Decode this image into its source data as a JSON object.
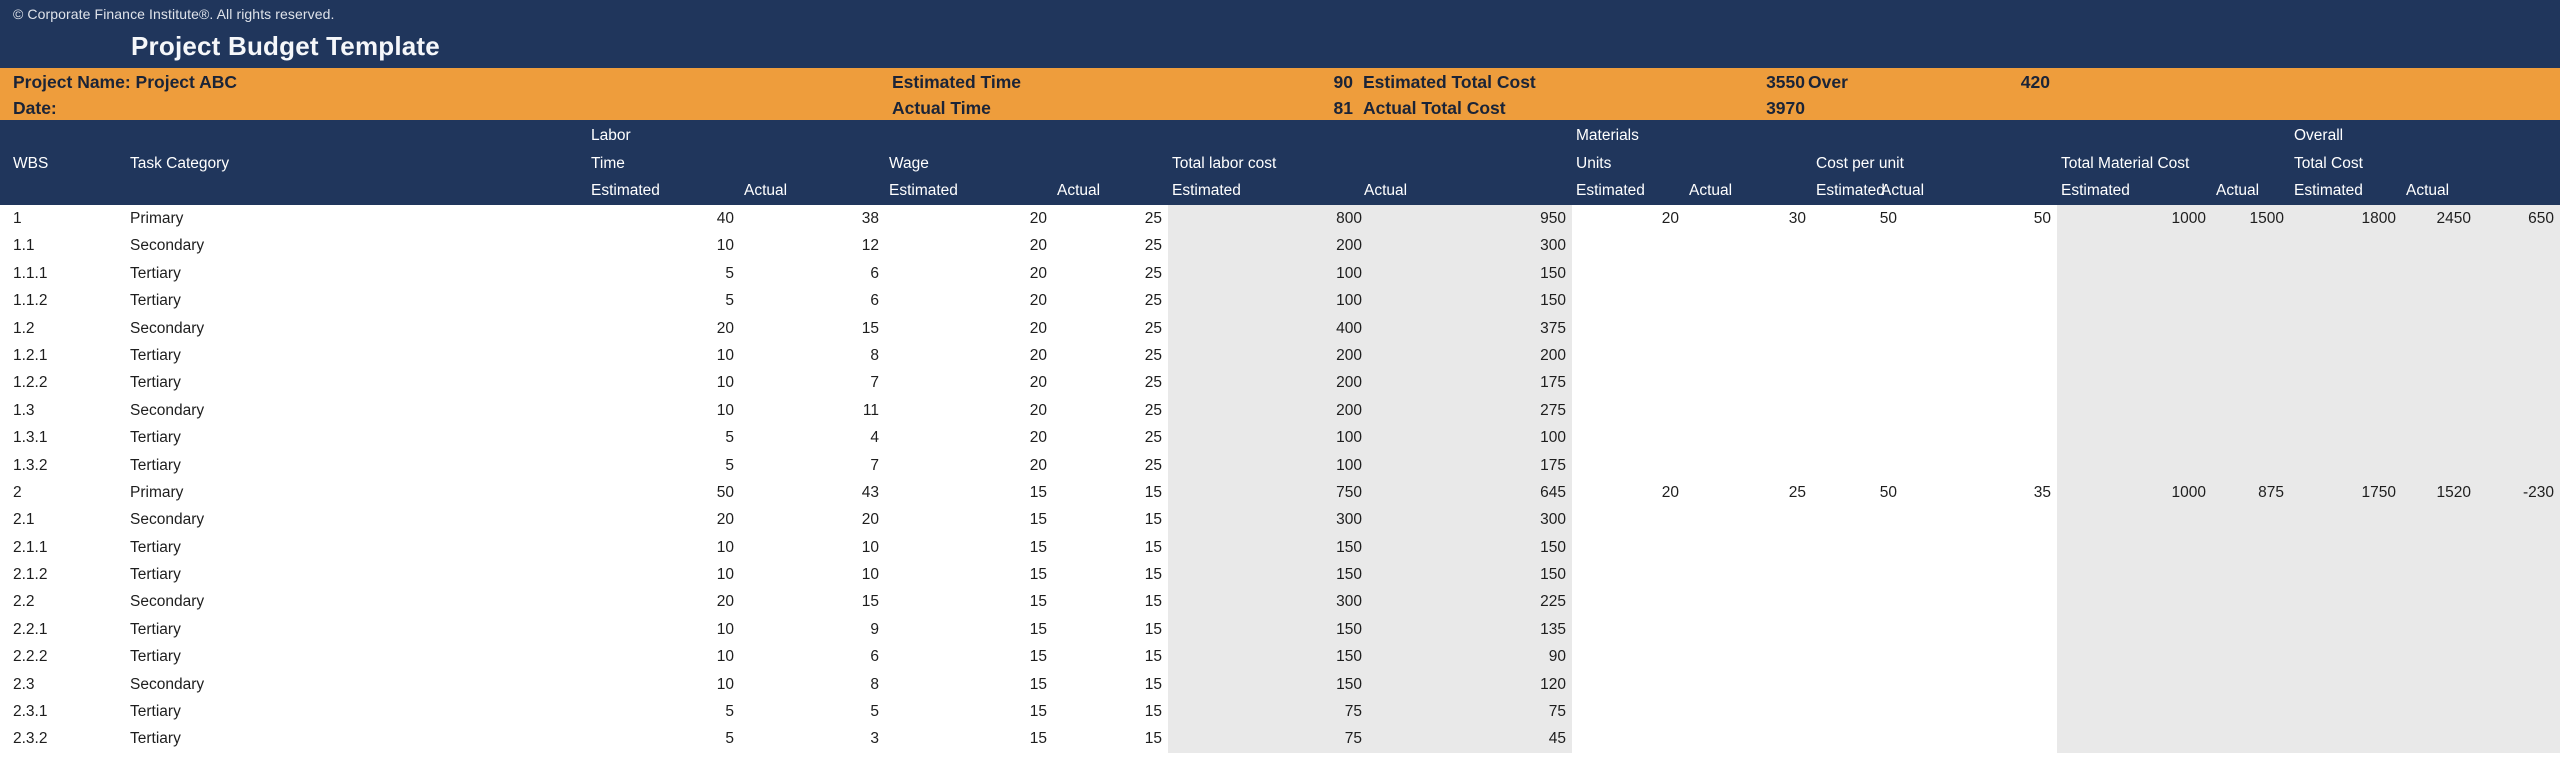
{
  "meta": {
    "copyright": "© Corporate Finance Institute®. All rights reserved.",
    "title": "Project Budget Template"
  },
  "info": {
    "project_name": "Project Name: Project ABC",
    "date_label": "Date:",
    "estimated_time_label": "Estimated Time",
    "estimated_time": "90",
    "actual_time_label": "Actual Time",
    "actual_time": "81",
    "estimated_total_cost_label": "Estimated Total Cost",
    "estimated_total_cost": "3550",
    "actual_total_cost_label": "Actual Total Cost",
    "actual_total_cost": "3970",
    "over_label": "Over",
    "over_value": "420"
  },
  "table": {
    "header": {
      "groups": {
        "labor": "Labor",
        "materials": "Materials",
        "overall": "Overall"
      },
      "cols": {
        "wbs": "WBS",
        "task_category": "Task Category",
        "time": "Time",
        "wage": "Wage",
        "total_labor_cost": "Total labor cost",
        "units": "Units",
        "cost_per_unit": "Cost per unit",
        "total_material_cost": "Total Material Cost",
        "total_cost": "Total Cost"
      },
      "estimated": "Estimated",
      "actual": "Actual"
    },
    "field_order": [
      "wbs",
      "task_category",
      "labor_time_estimated",
      "labor_time_actual",
      "wage_estimated",
      "wage_actual",
      "total_labor_cost_estimated",
      "total_labor_cost_actual",
      "materials_units_estimated",
      "materials_units_actual",
      "cost_per_unit_estimated",
      "cost_per_unit_actual",
      "total_material_cost_estimated",
      "total_material_cost_actual",
      "overall_total_cost_estimated",
      "overall_total_cost_actual",
      "over"
    ],
    "rows": [
      [
        "1",
        "Primary",
        40,
        38,
        20,
        25,
        800,
        950,
        20,
        30,
        50,
        50,
        1000,
        1500,
        1800,
        2450,
        650
      ],
      [
        "1.1",
        "Secondary",
        10,
        12,
        20,
        25,
        200,
        300,
        "",
        "",
        "",
        "",
        "",
        "",
        "",
        "",
        ""
      ],
      [
        "1.1.1",
        "Tertiary",
        5,
        6,
        20,
        25,
        100,
        150,
        "",
        "",
        "",
        "",
        "",
        "",
        "",
        "",
        ""
      ],
      [
        "1.1.2",
        "Tertiary",
        5,
        6,
        20,
        25,
        100,
        150,
        "",
        "",
        "",
        "",
        "",
        "",
        "",
        "",
        ""
      ],
      [
        "1.2",
        "Secondary",
        20,
        15,
        20,
        25,
        400,
        375,
        "",
        "",
        "",
        "",
        "",
        "",
        "",
        "",
        ""
      ],
      [
        "1.2.1",
        "Tertiary",
        10,
        8,
        20,
        25,
        200,
        200,
        "",
        "",
        "",
        "",
        "",
        "",
        "",
        "",
        ""
      ],
      [
        "1.2.2",
        "Tertiary",
        10,
        7,
        20,
        25,
        200,
        175,
        "",
        "",
        "",
        "",
        "",
        "",
        "",
        "",
        ""
      ],
      [
        "1.3",
        "Secondary",
        10,
        11,
        20,
        25,
        200,
        275,
        "",
        "",
        "",
        "",
        "",
        "",
        "",
        "",
        ""
      ],
      [
        "1.3.1",
        "Tertiary",
        5,
        4,
        20,
        25,
        100,
        100,
        "",
        "",
        "",
        "",
        "",
        "",
        "",
        "",
        ""
      ],
      [
        "1.3.2",
        "Tertiary",
        5,
        7,
        20,
        25,
        100,
        175,
        "",
        "",
        "",
        "",
        "",
        "",
        "",
        "",
        ""
      ],
      [
        "2",
        "Primary",
        50,
        43,
        15,
        15,
        750,
        645,
        20,
        25,
        50,
        35,
        1000,
        875,
        1750,
        1520,
        -230
      ],
      [
        "2.1",
        "Secondary",
        20,
        20,
        15,
        15,
        300,
        300,
        "",
        "",
        "",
        "",
        "",
        "",
        "",
        "",
        ""
      ],
      [
        "2.1.1",
        "Tertiary",
        10,
        10,
        15,
        15,
        150,
        150,
        "",
        "",
        "",
        "",
        "",
        "",
        "",
        "",
        ""
      ],
      [
        "2.1.2",
        "Tertiary",
        10,
        10,
        15,
        15,
        150,
        150,
        "",
        "",
        "",
        "",
        "",
        "",
        "",
        "",
        ""
      ],
      [
        "2.2",
        "Secondary",
        20,
        15,
        15,
        15,
        300,
        225,
        "",
        "",
        "",
        "",
        "",
        "",
        "",
        "",
        ""
      ],
      [
        "2.2.1",
        "Tertiary",
        10,
        9,
        15,
        15,
        150,
        135,
        "",
        "",
        "",
        "",
        "",
        "",
        "",
        "",
        ""
      ],
      [
        "2.2.2",
        "Tertiary",
        10,
        6,
        15,
        15,
        150,
        90,
        "",
        "",
        "",
        "",
        "",
        "",
        "",
        "",
        ""
      ],
      [
        "2.3",
        "Secondary",
        10,
        8,
        15,
        15,
        150,
        120,
        "",
        "",
        "",
        "",
        "",
        "",
        "",
        "",
        ""
      ],
      [
        "2.3.1",
        "Tertiary",
        5,
        5,
        15,
        15,
        75,
        75,
        "",
        "",
        "",
        "",
        "",
        "",
        "",
        "",
        ""
      ],
      [
        "2.3.2",
        "Tertiary",
        5,
        3,
        15,
        15,
        75,
        45,
        "",
        "",
        "",
        "",
        "",
        "",
        "",
        "",
        ""
      ]
    ]
  },
  "colors": {
    "navy": "#20365c",
    "orange": "#ee9d3c",
    "gray": "#e9e9e9",
    "ink": "#1e1e1e",
    "band-ink": "#1b2437",
    "head-ink": "#ffffff"
  }
}
